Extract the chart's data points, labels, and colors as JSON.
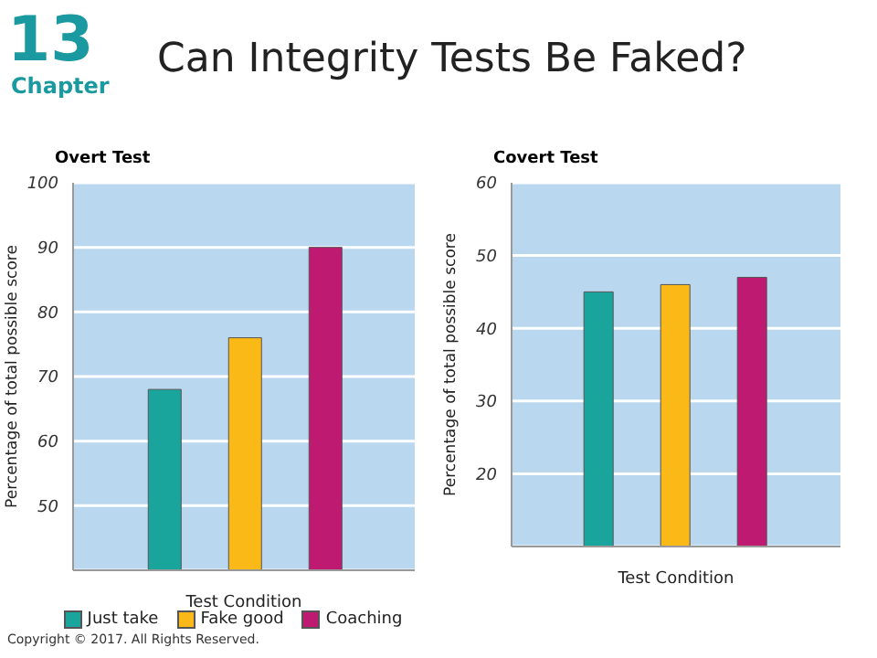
{
  "chart_data": [
    {
      "type": "bar",
      "title": "Overt Test",
      "xlabel": "Test Condition",
      "ylabel": "Percentage of total possible score",
      "categories": [
        null
      ],
      "series": [
        {
          "name": "Just take",
          "color": "#1aa59c",
          "values": [
            68
          ]
        },
        {
          "name": "Fake good",
          "color": "#fbb917",
          "values": [
            76
          ]
        },
        {
          "name": "Coaching",
          "color": "#be1a72",
          "values": [
            90
          ]
        }
      ],
      "ylim": [
        40,
        100
      ],
      "yticks": [
        50,
        60,
        70,
        80,
        90,
        100
      ],
      "grid": "y",
      "legend": "bottom",
      "annotations": [
        "13",
        "Chapter",
        "Can Integrity Tests Be Faked?",
        "Copyright © 2017. All Rights Reserved."
      ]
    },
    {
      "type": "bar",
      "title": "Covert Test",
      "xlabel": "Test  Condition",
      "ylabel": "Percentage of total possible score",
      "categories": [
        null
      ],
      "series": [
        {
          "color": "#1aa59c",
          "values": [
            45
          ]
        },
        {
          "color": "#fbb917",
          "values": [
            46
          ]
        },
        {
          "color": "#be1a72",
          "values": [
            47
          ]
        }
      ],
      "ylim": [
        10,
        60
      ],
      "yticks": [
        20,
        30,
        40,
        50,
        60
      ],
      "grid": "y"
    }
  ]
}
